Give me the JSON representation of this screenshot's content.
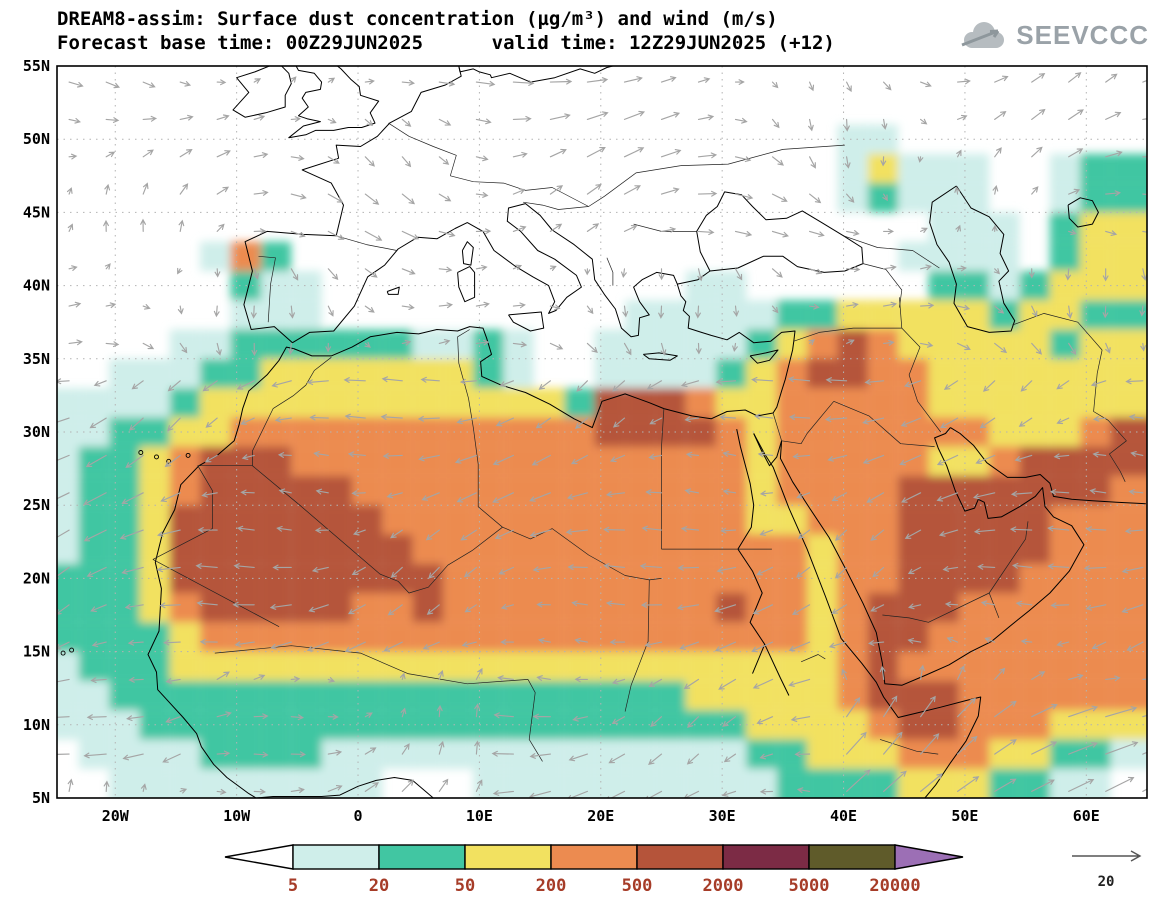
{
  "header": {
    "title": "DREAM8-assim: Surface dust concentration (µg/m³) and wind (m/s)",
    "subtitle": "Forecast base time: 00Z29JUN2025      valid time: 12Z29JUN2025 (+12)"
  },
  "logo": {
    "text": "SEEVCCC"
  },
  "chart_data": {
    "type": "heatmap",
    "title": "DREAM8-assim: Surface dust concentration (µg/m³) and wind (m/s)",
    "forecast_base_time": "00Z29JUN2025",
    "valid_time": "12Z29JUN2025 (+12)",
    "units": "µg/m³",
    "wind_units": "m/s",
    "lat_ticks": [
      "55N",
      "50N",
      "45N",
      "40N",
      "35N",
      "30N",
      "25N",
      "20N",
      "15N",
      "10N",
      "5N"
    ],
    "lon_ticks": [
      "20W",
      "10W",
      "0",
      "10E",
      "20E",
      "30E",
      "40E",
      "50E",
      "60E"
    ],
    "lat_tick_values": [
      55,
      50,
      45,
      40,
      35,
      30,
      25,
      20,
      15,
      10,
      5
    ],
    "lon_tick_values": [
      -20,
      -10,
      0,
      10,
      20,
      30,
      40,
      50,
      60
    ],
    "lon_range": [
      -24.8,
      65.0
    ],
    "lat_range": [
      5,
      55
    ],
    "graticule": "dotted gray lines every 5 deg latitude and 10 deg longitude",
    "colorbar": {
      "boundaries": [
        "5",
        "20",
        "50",
        "200",
        "500",
        "2000",
        "5000",
        "20000"
      ],
      "colors": [
        "#ffffff",
        "#cfeeea",
        "#41c6a2",
        "#f2e160",
        "#ec8b50",
        "#b5543a",
        "#7c2b45",
        "#5f5b2a",
        "#9c6fb5"
      ],
      "bin_meaning": [
        "<5",
        "5-20",
        "20-50",
        "50-200",
        "200-500",
        "500-2000",
        "2000-5000",
        "5000-20000",
        ">20000"
      ],
      "label_color": "#a63c28"
    },
    "wind_reference": {
      "label": "20",
      "speed_ms": 20
    },
    "dust_grid": {
      "lon_start": -25.5,
      "lon_step": 2.5,
      "lat_start": 55,
      "lat_step": 2,
      "value_encoding": "each digit = dust concentration bin index 0-8 matching colorbar.bin_meaning",
      "rows": [
        "000000000000000000000000000000000000",
        "000000000000000000000000000000000000",
        "000000000000000000000000001100000000",
        "000000000000000000000000001311100122",
        "000000000000000000000000001211100122",
        "000000000000000000000000000001110233",
        "000001420000000000000000000011110233",
        "000000211000000000000110000002212333",
        "000000111000000000011111223333323322",
        "000011222222112100111112345433333233",
        "001112233333332100111123455443333333",
        "111123333333333332555433444443333333",
        "112233444444444444555543444444433345",
        "122345554444444444444443444443345555",
        "122345555544444444444443444455555554",
        "122355555554444444444443344455555444",
        "122355555555444444444444434455555444",
        "222355555555544444444444434455554444",
        "222345555544544444444454434555444444",
        "222234444444444444444444434554444444",
        "122233333333333333333333334544444444",
        "112222222222222222222333334555444444",
        "111222222222222222222223333455444333",
        "011112222111111111111112233344433221",
        "001111111110001111111111222233322110"
      ]
    }
  }
}
